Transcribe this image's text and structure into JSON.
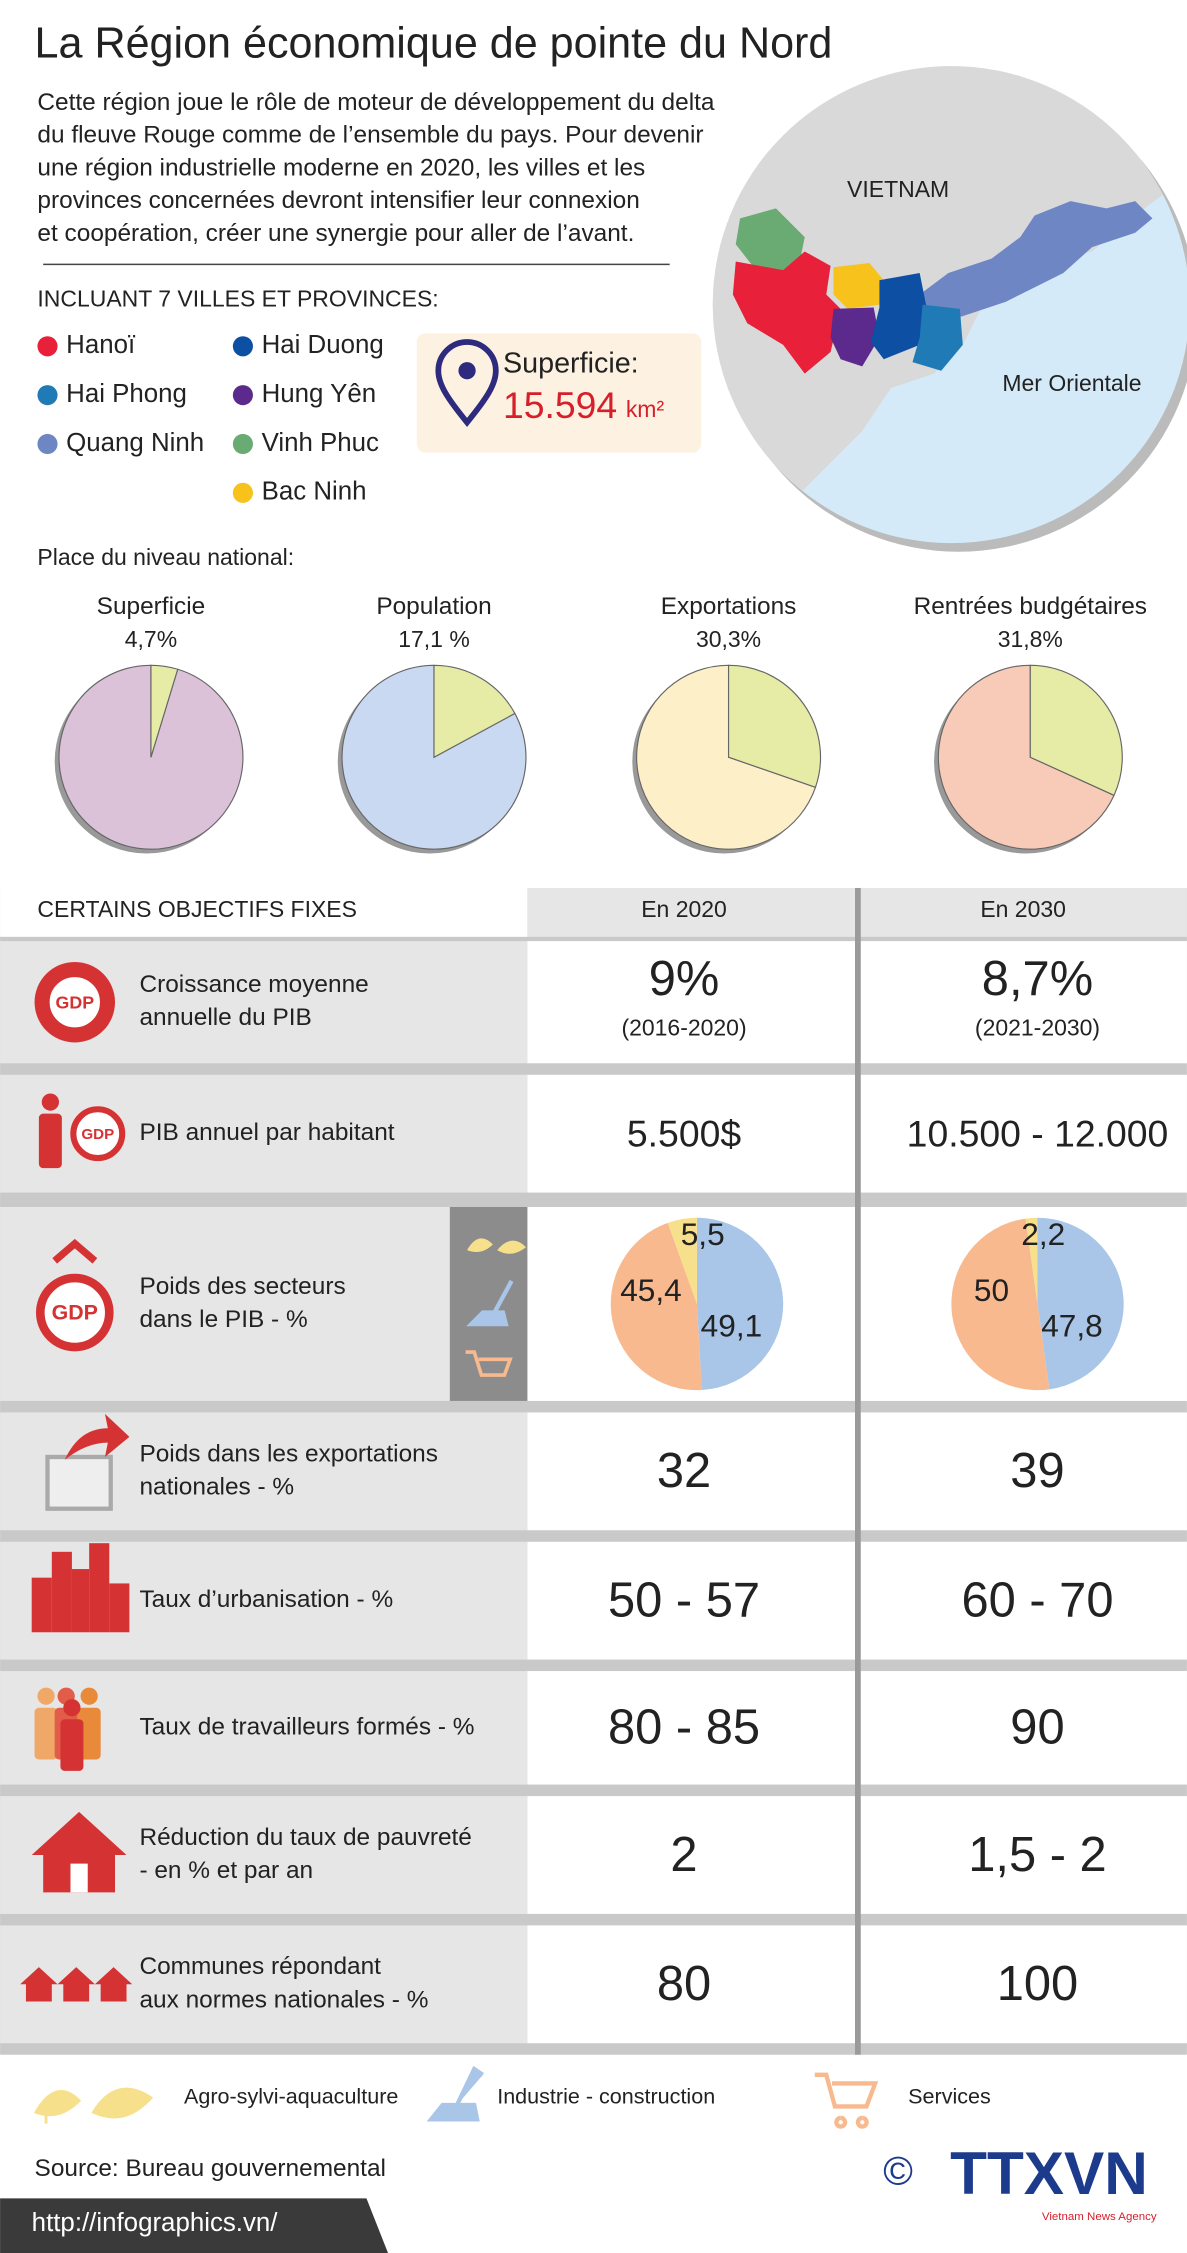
{
  "title": "La Région économique de pointe du Nord",
  "intro": [
    "Cette région joue le rôle de moteur de développement du delta",
    "du fleuve Rouge comme de l’ensemble du pays. Pour devenir",
    "une région industrielle moderne en 2020, les villes et les",
    "provinces concernées devront intensifier leur connexion",
    "et coopération, créer une synergie pour aller de l’avant."
  ],
  "map": {
    "labels": [
      "VIETNAM",
      "Mer Orientale"
    ]
  },
  "provinces": {
    "heading": "INCLUANT 7 VILLES ET PROVINCES:",
    "items": [
      {
        "name": "Hanoï",
        "color": "#e8203a"
      },
      {
        "name": "Hai Phong",
        "color": "#1f7ab5"
      },
      {
        "name": "Quang Ninh",
        "color": "#6f86c4"
      },
      {
        "name": "Hai Duong",
        "color": "#0d4fa3"
      },
      {
        "name": "Hung Yên",
        "color": "#5b2a8c"
      },
      {
        "name": "Vinh Phuc",
        "color": "#6aab74"
      },
      {
        "name": "Bac Ninh",
        "color": "#f7c21b"
      }
    ]
  },
  "area": {
    "label": "Superficie:",
    "value": "15.594",
    "unit": "km²"
  },
  "national_share": {
    "heading": "Place du niveau national:",
    "slice_color": "#e6eba6",
    "pies": [
      {
        "name": "Superficie",
        "value": 4.7,
        "value_label": "4,7%",
        "color": "#dcc2d9"
      },
      {
        "name": "Population",
        "value": 17.1,
        "value_label": "17,1 %",
        "color": "#c9d9f1"
      },
      {
        "name": "Exportations",
        "value": 30.3,
        "value_label": "30,3%",
        "color": "#fdefc8"
      },
      {
        "name": "Rentrées budgétaires",
        "value": 31.8,
        "value_label": "31,8%",
        "color": "#f8cbb8"
      }
    ]
  },
  "objectives": {
    "heading": "CERTAINS OBJECTIFS FIXES",
    "columns": [
      "En 2020",
      "En 2030"
    ],
    "icon_label": "GDP",
    "rows": [
      {
        "label": [
          "Croissance moyenne",
          "annuelle du PIB"
        ],
        "values": [
          "9%",
          "8,7%"
        ],
        "notes": [
          "(2016-2020)",
          "(2021-2030)"
        ]
      },
      {
        "label": [
          "PIB annuel par habitant"
        ],
        "values": [
          "5.500$",
          "10.500 - 12.000"
        ]
      },
      {
        "label": [
          "Poids des secteurs",
          "dans le PIB - %"
        ],
        "pies": [
          {
            "values": [
              5.5,
              49.1,
              45.4
            ],
            "value_labels": [
              "5,5",
              "49,1",
              "45,4"
            ]
          },
          {
            "values": [
              2.2,
              47.8,
              50
            ],
            "value_labels": [
              "2,2",
              "47,8",
              "50"
            ]
          }
        ]
      },
      {
        "label": [
          "Poids dans les exportations",
          "nationales - %"
        ],
        "values": [
          "32",
          "39"
        ]
      },
      {
        "label": [
          "Taux d’urbanisation - %"
        ],
        "values": [
          "50 - 57",
          "60 - 70"
        ]
      },
      {
        "label": [
          "Taux de travailleurs formés - %"
        ],
        "values": [
          "80 - 85",
          "90"
        ]
      },
      {
        "label": [
          "Réduction du taux de pauvreté",
          "- en % et par an"
        ],
        "values": [
          "2",
          "1,5 - 2"
        ]
      },
      {
        "label": [
          "Communes répondant",
          "aux normes nationales - %"
        ],
        "values": [
          "80",
          "100"
        ]
      }
    ]
  },
  "sectors": [
    {
      "name": "Agro-sylvi-aquaculture",
      "color": "#f7e08c"
    },
    {
      "name": "Industrie - construction",
      "color": "#a9c6e8"
    },
    {
      "name": "Services",
      "color": "#f8b98f"
    }
  ],
  "source": "Source: Bureau gouvernemental",
  "url": "http://infographics.vn/",
  "copyright": "©",
  "logo": "TTXVN",
  "logo_sub": "Vietnam News Agency"
}
